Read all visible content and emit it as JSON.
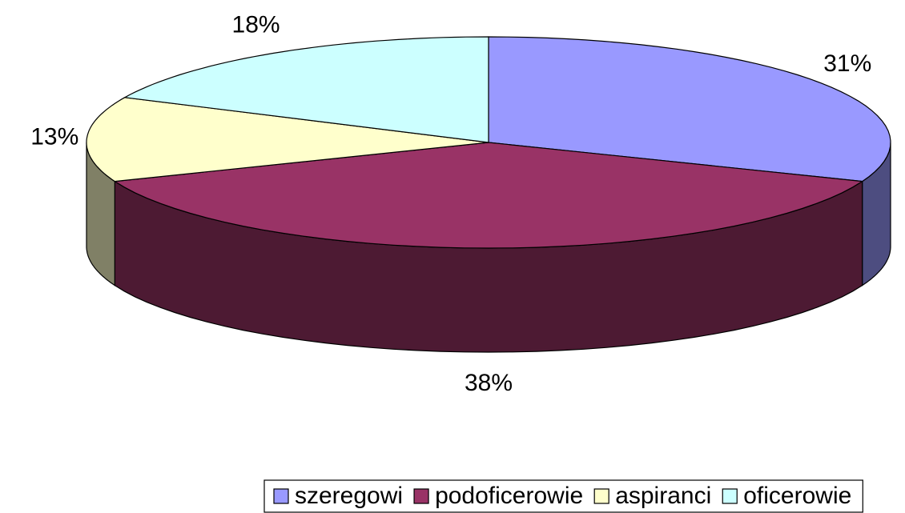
{
  "chart_data": {
    "type": "pie3d",
    "categories": [
      "szeregowi",
      "podoficerowie",
      "aspiranci",
      "oficerowie"
    ],
    "values": [
      31,
      38,
      13,
      18
    ],
    "value_labels": [
      "31%",
      "38%",
      "13%",
      "18%"
    ],
    "colors": [
      "#9999ff",
      "#993366",
      "#ffffcc",
      "#ccffff"
    ],
    "legend": "bottom"
  }
}
